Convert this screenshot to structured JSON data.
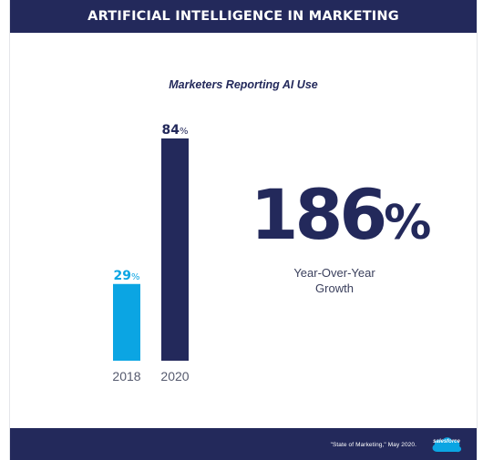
{
  "header": {
    "title": "ARTIFICIAL INTELLIGENCE IN MARKETING"
  },
  "chart_data": {
    "type": "bar",
    "title": "Marketers Reporting AI Use",
    "categories": [
      "2018",
      "2020"
    ],
    "values": [
      29,
      84
    ],
    "value_labels": [
      "29",
      "84"
    ],
    "unit": "%",
    "colors": [
      "#0ba5e3",
      "#23295b"
    ],
    "ylim": [
      0,
      84
    ],
    "grid": false
  },
  "stat": {
    "value": "186",
    "unit": "%",
    "label_line1": "Year-Over-Year",
    "label_line2": "Growth"
  },
  "footer": {
    "source": "\"State of Marketing,\" May 2020.",
    "logo_text": "salesforce",
    "colors": {
      "logo": "#0ba5e3",
      "band": "#23295b"
    }
  }
}
